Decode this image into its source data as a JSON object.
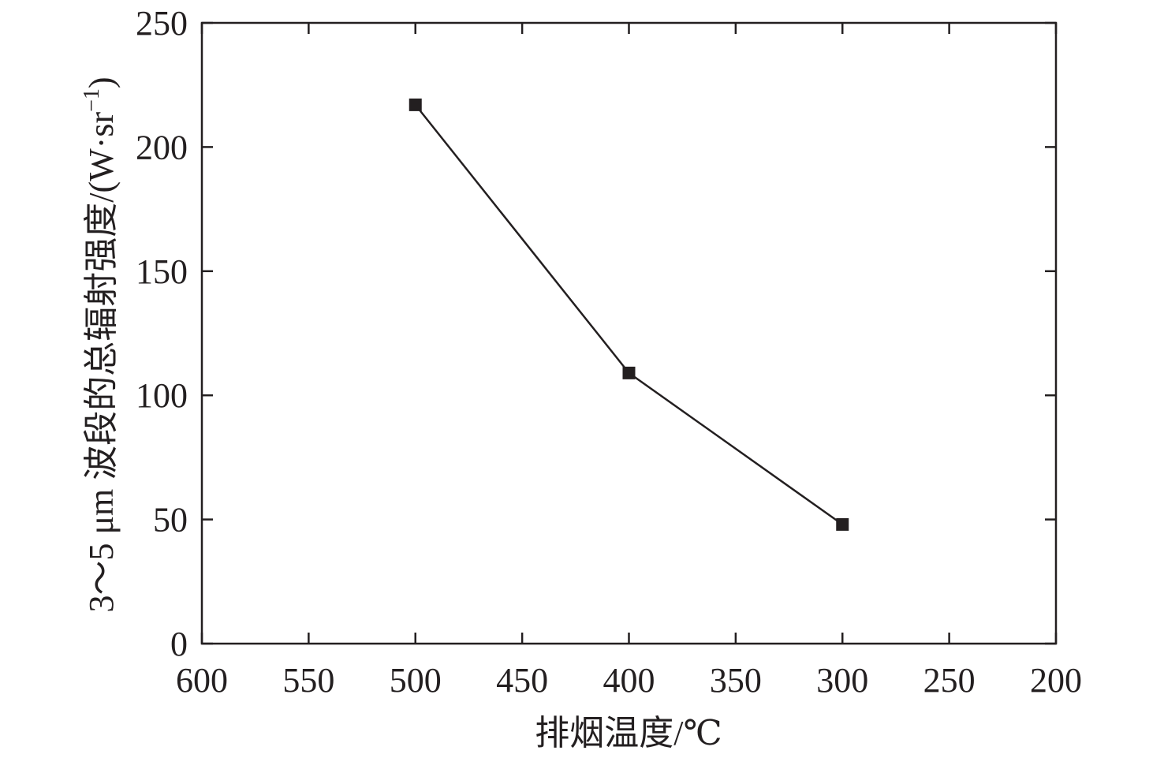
{
  "chart_data": {
    "type": "line",
    "xlabel": "排烟温度/℃",
    "ylabel": {
      "prefix": "3～5 μm 波段的总辐射强度/(W·sr",
      "superscript": "−1",
      "suffix": ")"
    },
    "xlim": [
      600,
      200
    ],
    "ylim": [
      0,
      250
    ],
    "x_reversed": true,
    "xticks": [
      600,
      550,
      500,
      450,
      400,
      350,
      300,
      250,
      200
    ],
    "yticks": [
      0,
      50,
      100,
      150,
      200,
      250
    ],
    "grid": false,
    "legend": "none",
    "series": [
      {
        "marker": "square",
        "color": "#231f20",
        "points": [
          {
            "x": 500,
            "y": 217
          },
          {
            "x": 400,
            "y": 109
          },
          {
            "x": 300,
            "y": 48
          }
        ]
      }
    ]
  }
}
